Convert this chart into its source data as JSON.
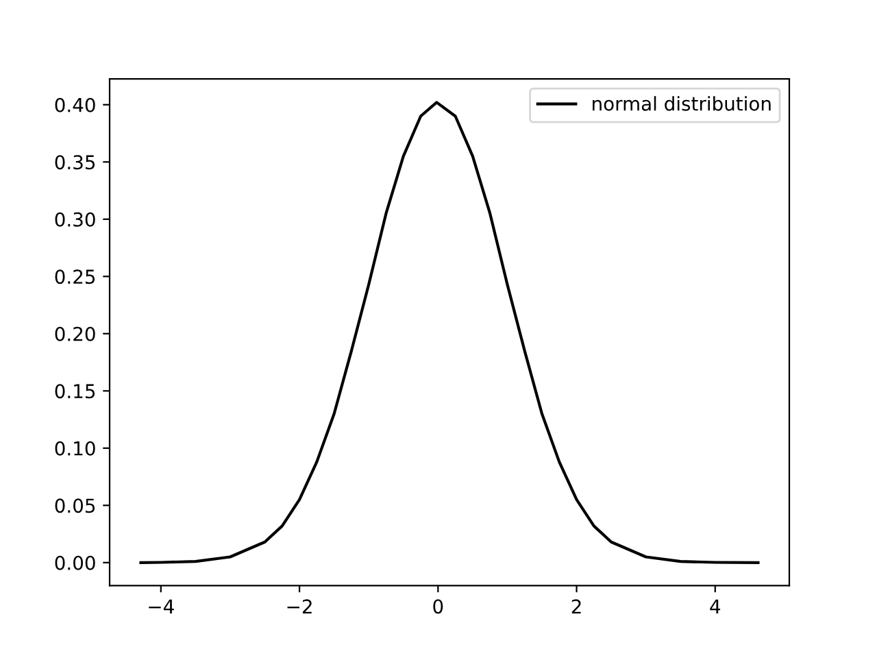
{
  "chart_data": {
    "type": "line",
    "x": [
      -4.29,
      -4.0,
      -3.5,
      -3.0,
      -2.5,
      -2.25,
      -2.0,
      -1.75,
      -1.5,
      -1.25,
      -1.0,
      -0.75,
      -0.5,
      -0.25,
      -0.02,
      0.25,
      0.5,
      0.75,
      1.0,
      1.25,
      1.5,
      1.75,
      2.0,
      2.25,
      2.5,
      3.0,
      3.5,
      4.0,
      4.62
    ],
    "series": [
      {
        "name": "normal distribution",
        "color": "#000000",
        "values": [
          0.0,
          0.0002,
          0.001,
          0.005,
          0.018,
          0.032,
          0.055,
          0.088,
          0.13,
          0.185,
          0.243,
          0.305,
          0.355,
          0.39,
          0.402,
          0.39,
          0.355,
          0.305,
          0.243,
          0.185,
          0.13,
          0.088,
          0.055,
          0.032,
          0.018,
          0.005,
          0.001,
          0.0002,
          0.0
        ]
      }
    ],
    "xlim": [
      -4.74,
      5.07
    ],
    "ylim": [
      -0.0201,
      0.4225
    ],
    "xticks": [
      {
        "value": -4,
        "label": "−4"
      },
      {
        "value": -2,
        "label": "−2"
      },
      0,
      2,
      4
    ],
    "yticks": [
      {
        "value": 0.0,
        "label": "0.00"
      },
      {
        "value": 0.05,
        "label": "0.05"
      },
      {
        "value": 0.1,
        "label": "0.10"
      },
      {
        "value": 0.15,
        "label": "0.15"
      },
      {
        "value": 0.2,
        "label": "0.20"
      },
      {
        "value": 0.25,
        "label": "0.25"
      },
      {
        "value": 0.3,
        "label": "0.30"
      },
      {
        "value": 0.35,
        "label": "0.35"
      },
      {
        "value": 0.4,
        "label": "0.40"
      }
    ],
    "legend": "top right",
    "grid": false
  }
}
